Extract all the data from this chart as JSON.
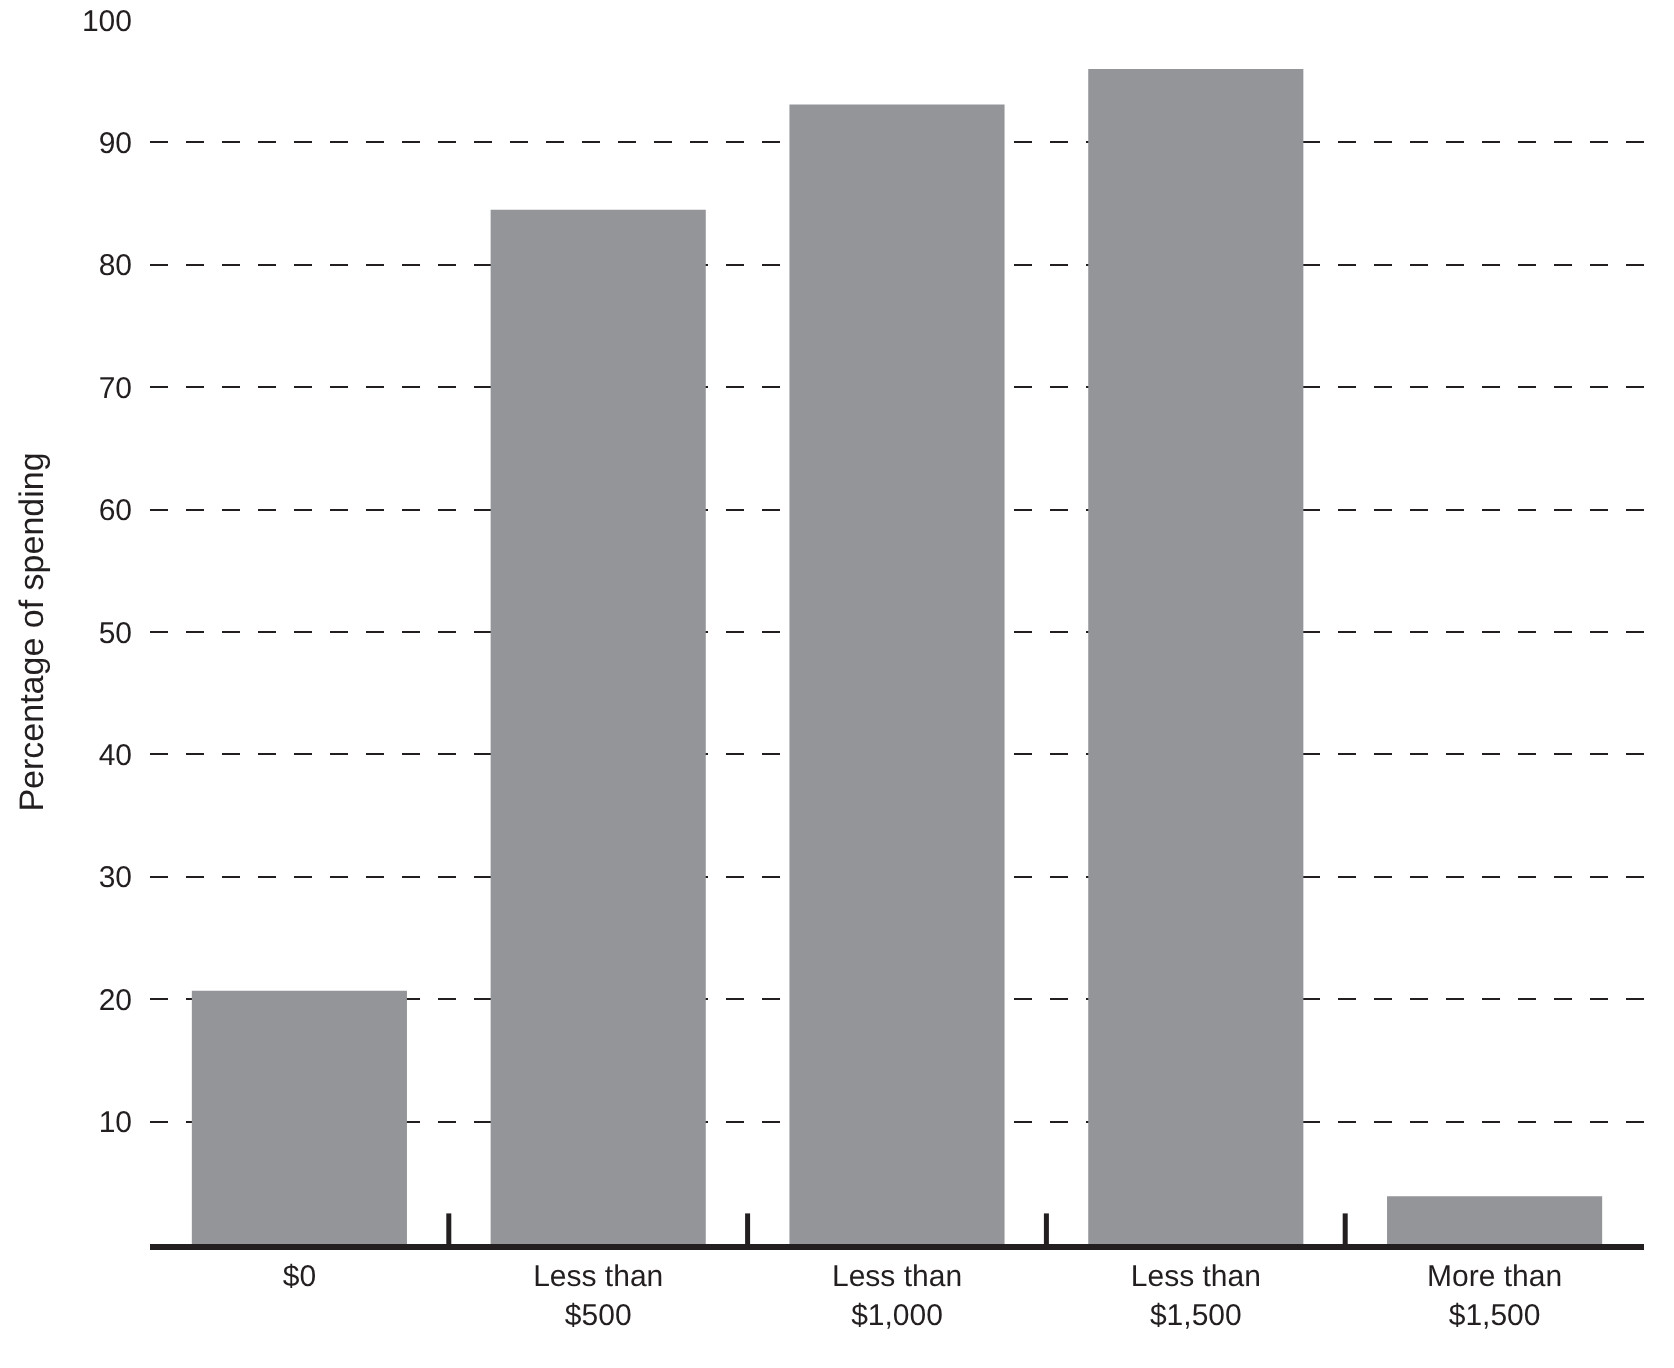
{
  "chart_data": {
    "type": "bar",
    "ylabel": "Percentage of spending",
    "categories": [
      "$0",
      "Less than $500",
      "Less than $1,000",
      "Less than $1,500",
      "More than $1,500"
    ],
    "values": [
      20.7,
      84.5,
      93.1,
      96.0,
      3.9
    ],
    "color": "#939598",
    "ylim": [
      0,
      100
    ],
    "yticks": [
      10,
      20,
      30,
      40,
      50,
      60,
      70,
      80,
      90,
      100
    ],
    "grid": "y"
  }
}
